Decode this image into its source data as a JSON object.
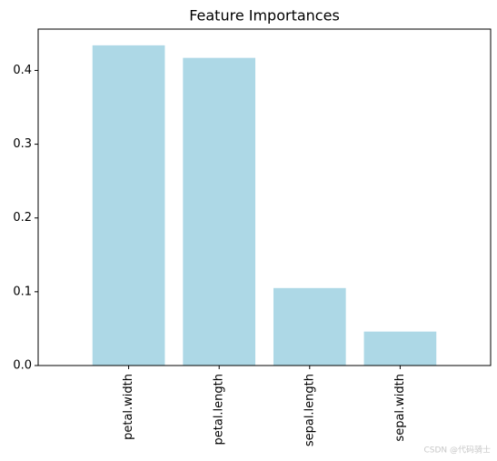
{
  "chart_data": {
    "type": "bar",
    "title": "Feature Importances",
    "categories": [
      "petal.width",
      "petal.length",
      "sepal.length",
      "sepal.width"
    ],
    "values": [
      0.434,
      0.417,
      0.105,
      0.046
    ],
    "color": "#add8e6",
    "ylim": [
      0,
      0.456
    ],
    "yticks": [
      {
        "value": 0,
        "label": "0.0"
      },
      0.1,
      0.2,
      0.3,
      0.4
    ],
    "grid": false
  },
  "watermark": "CSDN @代码骑士"
}
